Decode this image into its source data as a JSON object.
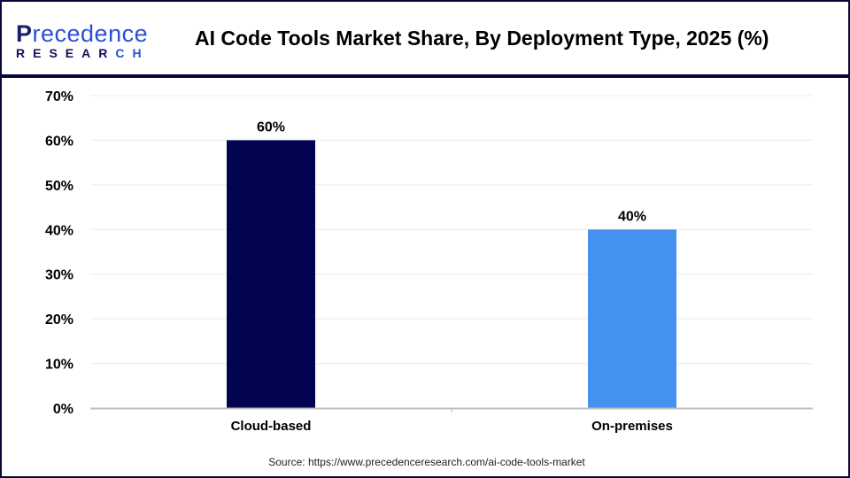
{
  "header": {
    "logo_text": "Precedence RESEARCH",
    "title": "AI Code Tools Market Share, By Deployment Type, 2025 (%)"
  },
  "chart_data": {
    "type": "bar",
    "title": "AI Code Tools Market Share, By Deployment Type, 2025 (%)",
    "categories": [
      "Cloud-based",
      "On-premises"
    ],
    "values": [
      60,
      40
    ],
    "data_labels": [
      "60%",
      "40%"
    ],
    "colors": [
      "#020452",
      "#4591ef"
    ],
    "ylim": [
      0,
      70
    ],
    "yticks": [
      "0%",
      "10%",
      "20%",
      "30%",
      "40%",
      "50%",
      "60%",
      "70%"
    ],
    "grid": true,
    "xlabel": "",
    "ylabel": ""
  },
  "footer": {
    "source": "Source: https://www.precedenceresearch.com/ai-code-tools-market"
  }
}
